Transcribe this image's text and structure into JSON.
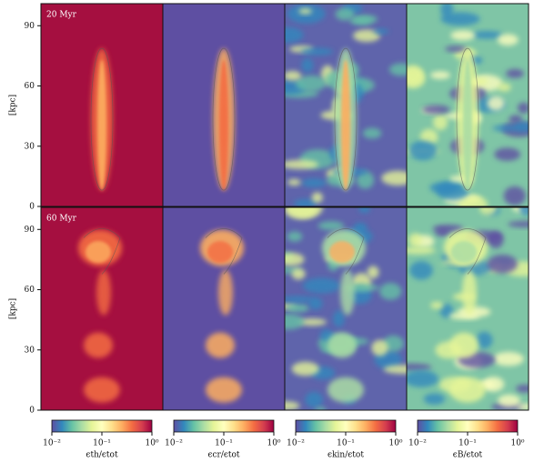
{
  "chart_data": [
    {
      "type": "image",
      "title": "20 Myr",
      "ylabel": "[kpc]",
      "ylim": [
        0,
        101
      ],
      "yticks": [
        0,
        30,
        60,
        90
      ]
    },
    {
      "type": "image",
      "title": "60 Myr",
      "ylabel": "[kpc]",
      "ylim": [
        0,
        101
      ],
      "yticks": [
        0,
        30,
        60,
        90
      ]
    },
    {
      "type": "colorbar",
      "xlabel": "ϵth/ϵtot",
      "log_scale": true,
      "xlim": [
        0.01,
        1
      ],
      "xticks": [
        {
          "value": 0.01,
          "label": "10⁻²"
        },
        {
          "value": 0.1,
          "label": "10⁻¹"
        },
        {
          "value": 1,
          "label": "10⁰"
        }
      ]
    },
    {
      "type": "colorbar",
      "xlabel": "ϵcr/ϵtot",
      "log_scale": true,
      "xlim": [
        0.01,
        1
      ],
      "xticks": [
        {
          "value": 0.01,
          "label": "10⁻²"
        },
        {
          "value": 0.1,
          "label": "10⁻¹"
        },
        {
          "value": 1,
          "label": "10⁰"
        }
      ]
    },
    {
      "type": "colorbar",
      "xlabel": "ϵkin/ϵtot",
      "log_scale": true,
      "xlim": [
        0.01,
        1
      ],
      "xticks": [
        {
          "value": 0.01,
          "label": "10⁻²"
        },
        {
          "value": 0.1,
          "label": "10⁻¹"
        },
        {
          "value": 1,
          "label": "10⁰"
        }
      ]
    },
    {
      "type": "colorbar",
      "xlabel": "ϵB/ϵtot",
      "log_scale": true,
      "xlim": [
        0.01,
        1
      ],
      "xticks": [
        {
          "value": 0.01,
          "label": "10⁻²"
        },
        {
          "value": 0.1,
          "label": "10⁻¹"
        },
        {
          "value": 1,
          "label": "10⁰"
        }
      ]
    }
  ],
  "colormap": [
    "#5e4fa2",
    "#3288bd",
    "#66c2a5",
    "#abdda4",
    "#e6f598",
    "#ffffbf",
    "#fee08b",
    "#fdae61",
    "#f46d43",
    "#d53e4f",
    "#9e0142"
  ]
}
